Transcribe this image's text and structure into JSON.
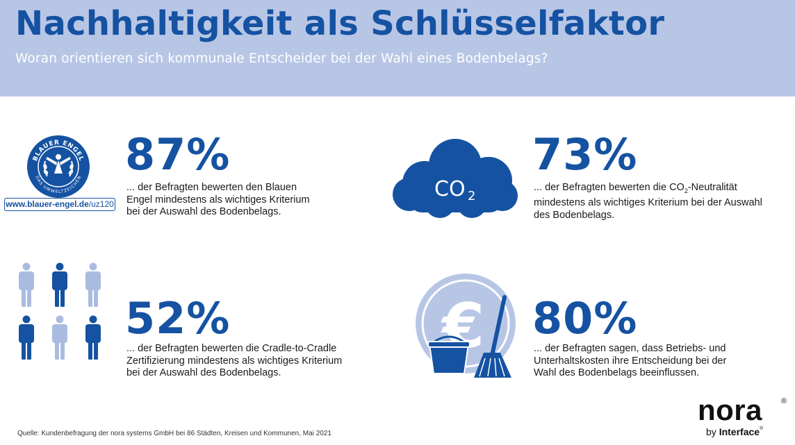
{
  "header": {
    "title": "Nachhaltigkeit als Schlüsselfaktor",
    "subtitle": "Woran orientieren sich kommunale Entscheider bei der Wahl eines Bodenbelags?"
  },
  "stats": {
    "blauer_engel": {
      "percent": "87%",
      "line1": "... der Befragten bewerten den Blauen",
      "line2": "Engel mindestens als wichtiges Kriterium",
      "line3": "bei der Auswahl des Bodenbelags.",
      "logo_top_text": "BLAUER ENGEL",
      "logo_bottom_text": "DAS UMWELTZEICHEN",
      "url_bold": "www.blauer-engel.de",
      "url_rest": "/uz120"
    },
    "co2": {
      "percent": "73%",
      "line1_pre": "... der Befragten bewerten die CO",
      "line1_sub": "2",
      "line1_post": "-Neutralität",
      "line2": "mindestens als wichtiges Kriterium bei der Auswahl",
      "line3": "des Bodenbelags.",
      "cloud_text": "CO",
      "cloud_sub": "2"
    },
    "cradle": {
      "percent": "52%",
      "line1": "... der Befragten bewerten die Cradle-to-Cradle",
      "line2": "Zertifizierung mindestens als wichtiges Kriterium",
      "line3": "bei der Auswahl des Bodenbelags."
    },
    "kosten": {
      "percent": "80%",
      "line1": "... der Befragten sagen, dass Betriebs- und",
      "line2": "Unterhaltskosten ihre Entscheidung bei der",
      "line3": "Wahl des Bodenbelags beeinflussen.",
      "euro_symbol": "€"
    }
  },
  "footer": {
    "source": "Quelle: Kundenbefragung der nora systems GmbH bei 86 Städten, Kreisen und Kommunen, Mai 2021",
    "logo_name": "nora",
    "logo_reg": "®",
    "logo_by": "by",
    "logo_interface": "Interface",
    "logo_reg2": "®"
  },
  "colors": {
    "primary_blue": "#1552a2",
    "light_blue": "#b8c6e6",
    "person_light": "#a9bce0"
  }
}
